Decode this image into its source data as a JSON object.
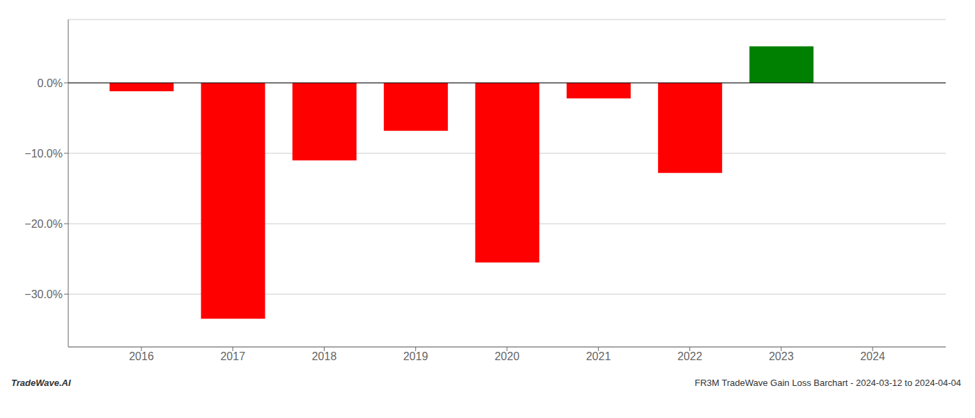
{
  "chart_data": {
    "type": "bar",
    "x": [
      2016,
      2017,
      2018,
      2019,
      2020,
      2021,
      2022,
      2023
    ],
    "values": [
      -0.012,
      -0.335,
      -0.11,
      -0.068,
      -0.255,
      -0.022,
      -0.128,
      0.052
    ],
    "colors": [
      "#ff0000",
      "#ff0000",
      "#ff0000",
      "#ff0000",
      "#ff0000",
      "#ff0000",
      "#ff0000",
      "#008000"
    ],
    "xlim": [
      2015.2,
      2024.8
    ],
    "xticks": [
      2016,
      2017,
      2018,
      2019,
      2020,
      2021,
      2022,
      2023,
      2024
    ],
    "ylim": [
      -0.375,
      0.09
    ],
    "yticks": [
      {
        "value": 0.0,
        "label": "0.0%"
      },
      {
        "value": -0.1,
        "label": "−10.0%"
      },
      {
        "value": -0.2,
        "label": "−20.0%"
      },
      {
        "value": -0.3,
        "label": "−30.0%"
      }
    ],
    "grid": true,
    "annotations": [
      "TradeWave.AI",
      "FR3M TradeWave Gain Loss Barchart - 2024-03-12 to 2024-04-04"
    ]
  }
}
